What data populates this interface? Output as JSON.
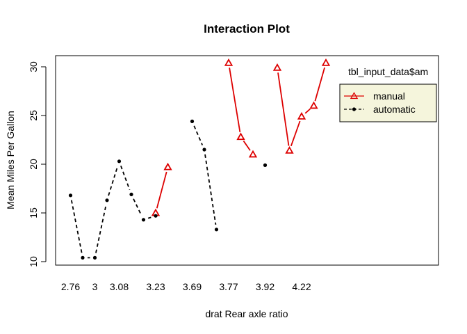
{
  "chart_data": {
    "type": "line",
    "title": "Interaction Plot",
    "xlabel": "drat Rear axle ratio",
    "ylabel": "Mean Miles Per Gallon",
    "ylim": [
      10,
      30
    ],
    "yticks": [
      10,
      15,
      20,
      25,
      30
    ],
    "xtick_labels": [
      "2.76",
      "3",
      "3.08",
      "3.23",
      "3.69",
      "3.77",
      "3.92",
      "4.22"
    ],
    "legend": {
      "title": "tbl_input_data$am",
      "placement": "top-right",
      "background": "#f5f5dc"
    },
    "grid": false,
    "series": [
      {
        "name": "manual",
        "color": "#dd0000",
        "line_style": "solid",
        "marker": "triangle",
        "points": [
          {
            "x": 8,
            "y": 15.0
          },
          {
            "x": 9,
            "y": 19.7
          },
          {
            "x": 14,
            "y": 30.4
          },
          {
            "x": 15,
            "y": 22.8
          },
          {
            "x": 16,
            "y": 21.0
          },
          {
            "x": 18,
            "y": 29.9
          },
          {
            "x": 19,
            "y": 21.4
          },
          {
            "x": 20,
            "y": 24.9
          },
          {
            "x": 21,
            "y": 26.0
          },
          {
            "x": 22,
            "y": 30.4
          }
        ]
      },
      {
        "name": "automatic",
        "color": "#000000",
        "line_style": "dashed",
        "marker": "dot",
        "points": [
          {
            "x": 1,
            "y": 16.8
          },
          {
            "x": 2,
            "y": 10.4
          },
          {
            "x": 3,
            "y": 10.4
          },
          {
            "x": 4,
            "y": 16.3
          },
          {
            "x": 5,
            "y": 20.3
          },
          {
            "x": 6,
            "y": 16.9
          },
          {
            "x": 7,
            "y": 14.3
          },
          {
            "x": 8,
            "y": 14.7
          },
          {
            "x": 11,
            "y": 24.4
          },
          {
            "x": 12,
            "y": 21.5
          },
          {
            "x": 13,
            "y": 13.3
          },
          {
            "x": 17,
            "y": 19.9
          }
        ]
      }
    ]
  }
}
